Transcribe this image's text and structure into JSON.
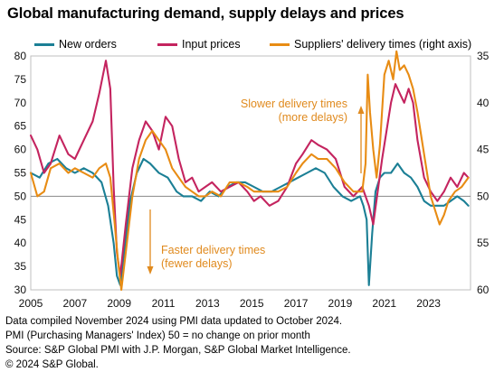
{
  "title": "Global manufacturing demand, supply delays and prices",
  "colors": {
    "new_orders": "#1b7f95",
    "input_prices": "#c4245f",
    "delivery_times": "#e88c14",
    "annotation": "#e08a1e",
    "reference_line": "#888888"
  },
  "legend": [
    {
      "label": "New orders",
      "color": "#1b7f95"
    },
    {
      "label": "Input prices",
      "color": "#c4245f"
    },
    {
      "label": "Suppliers' delivery times (right axis)",
      "color": "#e88c14"
    }
  ],
  "annotations": {
    "slower": [
      "Slower delivery times",
      "(more delays)"
    ],
    "faster": [
      "Faster delivery times",
      "(fewer delays)"
    ]
  },
  "footnotes": [
    "Data compiled November 2024 using PMI data updated to October 2024.",
    "PMI (Purchasing Managers' Index) 50 = no change on prior month",
    "Source: S&P Global  PMI with J.P. Morgan, S&P Global Market Intelligence.",
    "© 2024 S&P Global."
  ],
  "chart_data": {
    "type": "line",
    "x_ticks": [
      "2005",
      "2007",
      "2009",
      "2011",
      "2013",
      "2015",
      "2017",
      "2019",
      "2021",
      "2023"
    ],
    "xlim": [
      2005,
      2024.9
    ],
    "y_left_ticks": [
      "80",
      "75",
      "70",
      "65",
      "60",
      "55",
      "50",
      "45",
      "40",
      "35",
      "30"
    ],
    "ylim_left": [
      30,
      80
    ],
    "y_right_ticks": [
      "35",
      "40",
      "45",
      "50",
      "55",
      "60"
    ],
    "ylim_right": [
      60,
      35
    ],
    "right_axis_inverted": true,
    "reference_line": 50,
    "series": [
      {
        "name": "New orders",
        "axis": "left",
        "x": [
          2005.0,
          2005.4,
          2005.8,
          2006.2,
          2006.6,
          2007.0,
          2007.4,
          2007.8,
          2008.2,
          2008.5,
          2008.75,
          2008.9,
          2009.05,
          2009.25,
          2009.5,
          2009.8,
          2010.1,
          2010.4,
          2010.8,
          2011.2,
          2011.6,
          2011.9,
          2012.3,
          2012.7,
          2013.1,
          2013.5,
          2013.9,
          2014.3,
          2014.7,
          2015.1,
          2015.5,
          2015.9,
          2016.3,
          2016.7,
          2017.1,
          2017.5,
          2017.9,
          2018.3,
          2018.7,
          2019.1,
          2019.5,
          2019.9,
          2020.05,
          2020.2,
          2020.3,
          2020.45,
          2020.6,
          2020.8,
          2021.0,
          2021.3,
          2021.6,
          2021.9,
          2022.2,
          2022.5,
          2022.8,
          2023.1,
          2023.4,
          2023.7,
          2024.0,
          2024.3,
          2024.6,
          2024.8
        ],
        "y": [
          55,
          54,
          57,
          58,
          56,
          55,
          56,
          55,
          53,
          48,
          40,
          33,
          31,
          39,
          49,
          55,
          58,
          57,
          55,
          54,
          51,
          50,
          50,
          49,
          51,
          50,
          52,
          53,
          53,
          52,
          51,
          51,
          52,
          53,
          54,
          55,
          56,
          55,
          52,
          50,
          49,
          50,
          48,
          45,
          31,
          42,
          51,
          54,
          55,
          55,
          57,
          55,
          54,
          52,
          49,
          48,
          48,
          48,
          49,
          50,
          49,
          48
        ]
      },
      {
        "name": "Input prices",
        "axis": "left",
        "x": [
          2005.0,
          2005.3,
          2005.6,
          2005.9,
          2006.3,
          2006.7,
          2007.0,
          2007.4,
          2007.8,
          2008.1,
          2008.4,
          2008.6,
          2008.75,
          2008.9,
          2009.05,
          2009.3,
          2009.6,
          2009.9,
          2010.2,
          2010.5,
          2010.8,
          2011.1,
          2011.4,
          2011.7,
          2012.0,
          2012.3,
          2012.6,
          2012.9,
          2013.2,
          2013.6,
          2014.0,
          2014.4,
          2014.8,
          2015.1,
          2015.4,
          2015.8,
          2016.2,
          2016.6,
          2017.0,
          2017.3,
          2017.7,
          2018.0,
          2018.4,
          2018.8,
          2019.2,
          2019.6,
          2020.0,
          2020.3,
          2020.5,
          2020.7,
          2020.9,
          2021.1,
          2021.3,
          2021.5,
          2021.7,
          2021.9,
          2022.1,
          2022.3,
          2022.5,
          2022.8,
          2023.1,
          2023.4,
          2023.7,
          2024.0,
          2024.3,
          2024.6,
          2024.8
        ],
        "y": [
          63,
          60,
          55,
          57,
          63,
          59,
          58,
          62,
          66,
          72,
          79,
          73,
          52,
          38,
          33,
          44,
          56,
          62,
          66,
          64,
          60,
          67,
          65,
          58,
          53,
          54,
          51,
          52,
          53,
          51,
          52,
          53,
          51,
          49,
          50,
          48,
          49,
          52,
          57,
          59,
          62,
          61,
          60,
          58,
          52,
          50,
          52,
          48,
          44,
          51,
          58,
          64,
          70,
          74,
          72,
          70,
          73,
          70,
          62,
          54,
          51,
          49,
          51,
          54,
          52,
          55,
          54
        ]
      },
      {
        "name": "Suppliers' delivery times (right axis)",
        "axis": "right",
        "x": [
          2005.0,
          2005.3,
          2005.6,
          2005.9,
          2006.3,
          2006.7,
          2007.0,
          2007.4,
          2007.8,
          2008.1,
          2008.4,
          2008.6,
          2008.8,
          2008.95,
          2009.1,
          2009.3,
          2009.6,
          2009.9,
          2010.2,
          2010.5,
          2010.8,
          2011.1,
          2011.4,
          2011.7,
          2012.0,
          2012.3,
          2012.6,
          2012.9,
          2013.2,
          2013.6,
          2014.0,
          2014.4,
          2014.8,
          2015.1,
          2015.4,
          2015.8,
          2016.2,
          2016.6,
          2017.0,
          2017.3,
          2017.7,
          2018.0,
          2018.4,
          2018.8,
          2019.2,
          2019.6,
          2020.0,
          2020.15,
          2020.25,
          2020.35,
          2020.5,
          2020.65,
          2020.8,
          2021.0,
          2021.2,
          2021.4,
          2021.55,
          2021.7,
          2021.9,
          2022.1,
          2022.3,
          2022.5,
          2022.8,
          2023.1,
          2023.3,
          2023.5,
          2023.7,
          2023.9,
          2024.2,
          2024.5,
          2024.8
        ],
        "y": [
          47.5,
          50,
          49.5,
          47,
          46.5,
          47.5,
          47,
          47.5,
          48,
          47,
          46.5,
          48,
          53,
          57,
          60,
          56,
          50,
          46,
          44,
          43,
          44,
          45,
          47,
          48,
          49,
          49.5,
          50,
          50,
          49.5,
          50,
          48.5,
          48.5,
          49,
          49.5,
          49.5,
          49.5,
          49.5,
          49,
          47.5,
          46.5,
          45.5,
          46,
          46,
          47,
          48.5,
          49.5,
          49.5,
          46.5,
          37,
          41,
          45,
          48,
          44.5,
          37,
          35.5,
          37.5,
          34.5,
          36.5,
          36,
          37,
          38.5,
          41,
          45.5,
          50,
          51.5,
          53,
          52,
          50.5,
          49.5,
          49,
          48
        ]
      }
    ]
  }
}
